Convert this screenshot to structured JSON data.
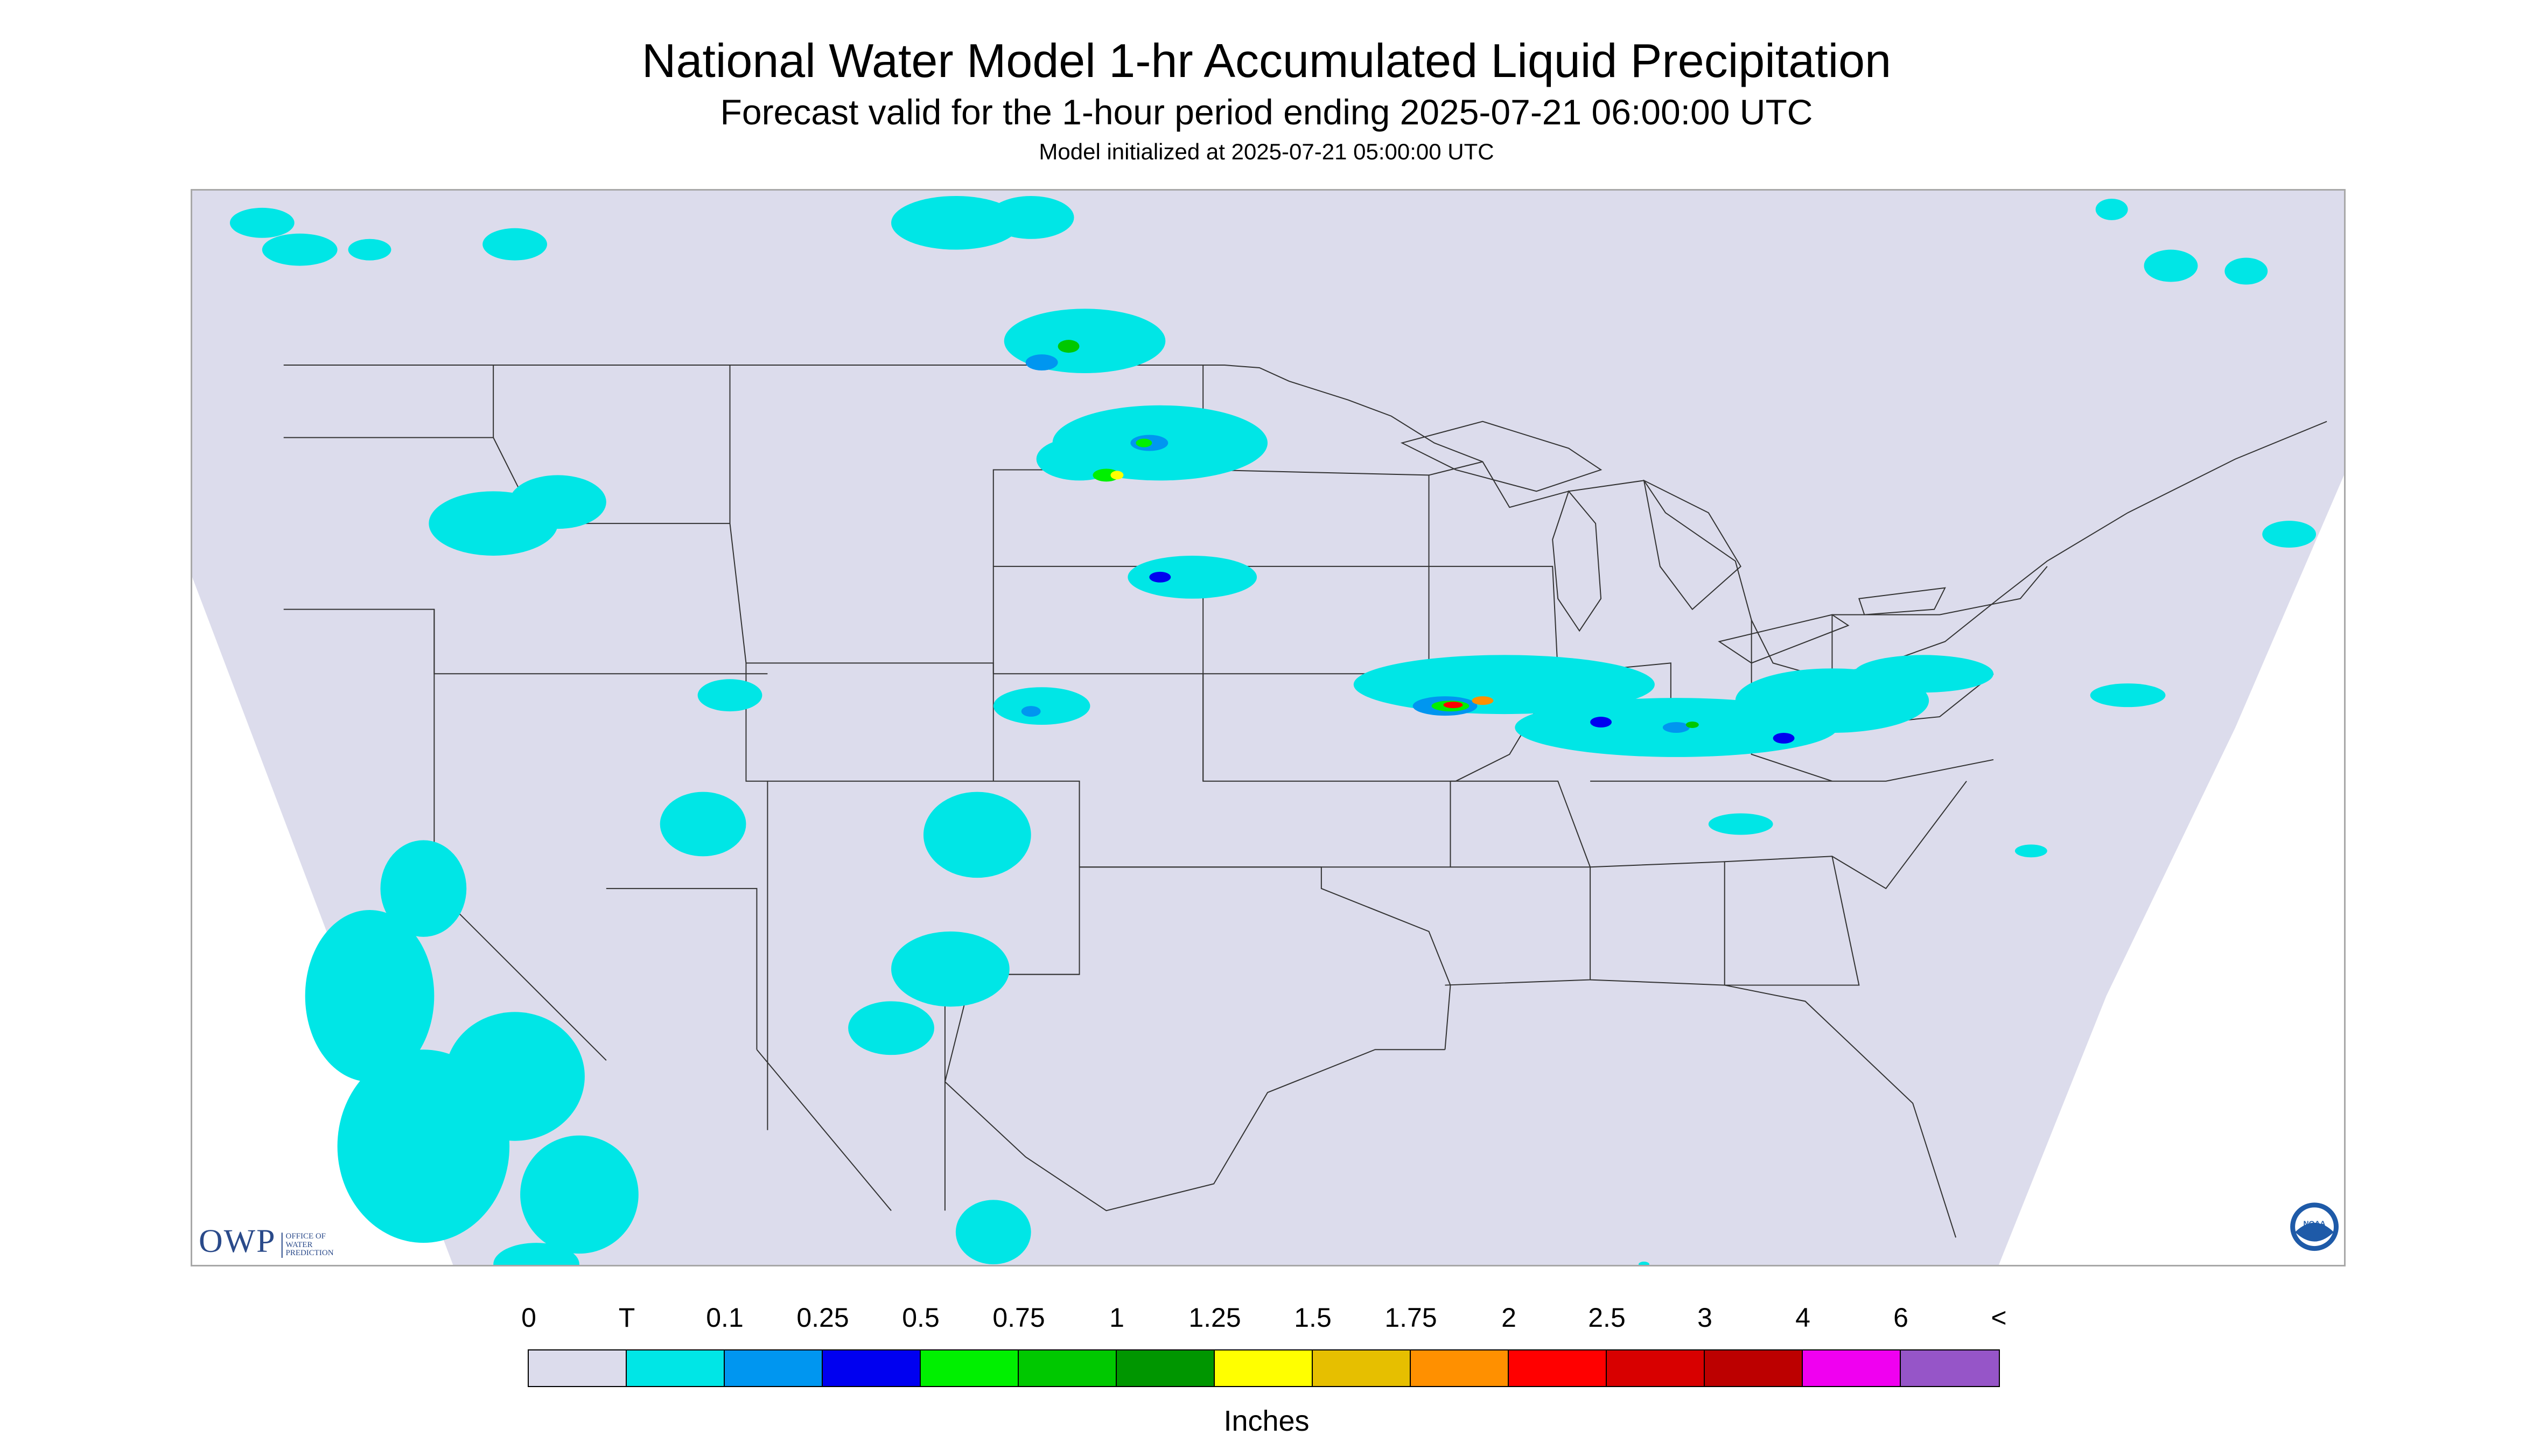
{
  "title": "National Water Model 1-hr Accumulated Liquid Precipitation",
  "subtitle": "Forecast valid for the 1-hour period ending 2025-07-21 06:00:00 UTC",
  "init_line": "Model initialized at 2025-07-21 05:00:00 UTC",
  "owp_logo": {
    "mark": "OWP",
    "text": "OFFICE OF WATER PREDICTION"
  },
  "noaa_logo": {
    "text": "NOAA"
  },
  "legend": {
    "labels": [
      "0",
      "T",
      "0.1",
      "0.25",
      "0.5",
      "0.75",
      "1",
      "1.25",
      "1.5",
      "1.75",
      "2",
      "2.5",
      "3",
      "4",
      "6",
      "<"
    ],
    "colors": [
      "#dcdcec",
      "#00e6e6",
      "#0096f0",
      "#0000f0",
      "#00f000",
      "#00c800",
      "#009600",
      "#ffff00",
      "#e6bf00",
      "#ff9000",
      "#ff0000",
      "#d80000",
      "#bc0000",
      "#f000f0",
      "#9655c8"
    ],
    "units": "Inches"
  },
  "colors": {
    "background": "#dcdcec",
    "outside_domain": "#ffffff",
    "trace": "#00e6e6",
    "boundary_lines": "#333333"
  }
}
